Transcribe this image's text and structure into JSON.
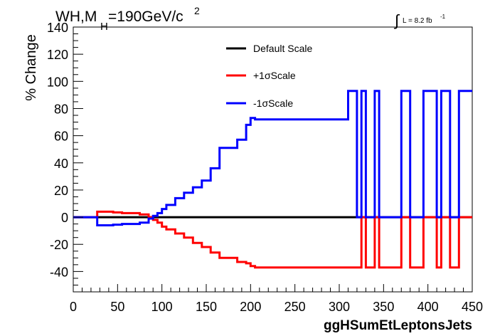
{
  "chart_data": {
    "type": "line",
    "title": {
      "main": "WH,M",
      "sub": "H",
      "rest": "=190GeV/c",
      "sup": "2"
    },
    "lumi": {
      "integral": "∫",
      "text": "L = 8.2 fb",
      "sup": "-1"
    },
    "xlabel": "ggHSumEtLeptonsJets",
    "ylabel": "% Change",
    "xlim": [
      0,
      450
    ],
    "ylim": [
      -55,
      140
    ],
    "xticks": [
      0,
      50,
      100,
      150,
      200,
      250,
      300,
      350,
      400,
      450
    ],
    "yticks": [
      -40,
      -20,
      0,
      20,
      40,
      60,
      80,
      100,
      120,
      140
    ],
    "grid": false,
    "legend_position": "top-center",
    "series": [
      {
        "name": "Default Scale",
        "color": "#000000",
        "x": [
          0,
          450
        ],
        "y": [
          0,
          0
        ]
      },
      {
        "name": "+1σScale",
        "color": "#ff0000",
        "x": [
          0,
          27,
          37,
          45,
          55,
          65,
          75,
          85,
          90,
          95,
          100,
          105,
          115,
          125,
          135,
          145,
          155,
          165,
          185,
          195,
          200,
          205,
          320,
          325,
          330,
          340,
          345,
          370,
          380,
          395,
          410,
          415,
          425,
          435,
          450
        ],
        "y": [
          0,
          4,
          4,
          3.5,
          3,
          3,
          2,
          0,
          -2,
          -4,
          -7,
          -9,
          -12,
          -15,
          -19,
          -22,
          -26,
          -30,
          -33,
          -34,
          -36,
          -37,
          -37,
          0,
          -37,
          0,
          -37,
          0,
          -37,
          0,
          -37,
          0,
          -37,
          0,
          0
        ]
      },
      {
        "name": "-1σScale",
        "color": "#0000ff",
        "x": [
          0,
          27,
          37,
          45,
          55,
          65,
          75,
          85,
          90,
          95,
          100,
          105,
          115,
          125,
          135,
          145,
          155,
          165,
          185,
          195,
          200,
          205,
          310,
          320,
          325,
          330,
          340,
          345,
          370,
          380,
          395,
          410,
          415,
          425,
          435,
          450
        ],
        "y": [
          0,
          -6,
          -6,
          -5.5,
          -5,
          -5,
          -4,
          -1,
          1,
          3,
          6,
          9,
          14,
          18,
          22,
          27,
          36,
          51,
          57,
          68,
          73,
          72,
          93,
          0,
          93,
          0,
          93,
          0,
          93,
          0,
          93,
          0,
          93,
          0,
          93,
          0
        ]
      }
    ]
  }
}
